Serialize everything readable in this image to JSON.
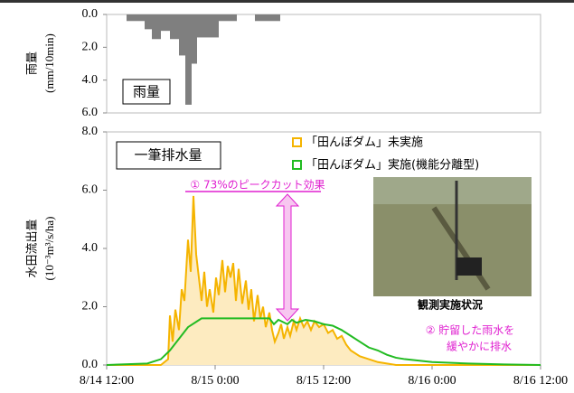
{
  "rain_chart": {
    "type": "histogram",
    "y_label_1": "雨量",
    "y_label_2": "(mm/10min)",
    "box_label": "雨量",
    "color": "#7f7f7f",
    "bins": [
      2.2,
      4.2,
      5.0,
      6.0,
      7.0,
      8.0,
      8.7,
      9.4,
      10.0,
      10.7,
      12.4,
      14.4,
      16.4,
      19.2
    ],
    "values": [
      0.4,
      0.9,
      1.5,
      1.0,
      1.5,
      2.5,
      5.5,
      3.0,
      1.4,
      1.4,
      0.4,
      0,
      0.4
    ],
    "ylim": [
      0,
      6
    ],
    "yticks": [
      {
        "value": 0,
        "label": "0.0"
      },
      {
        "value": 2,
        "label": "2.0"
      },
      {
        "value": 4,
        "label": "4.0"
      },
      {
        "value": 6,
        "label": "6.0"
      }
    ],
    "xlim": [
      0,
      48
    ]
  },
  "chart_data": {
    "type": "line",
    "y_label_1": "水田流出量",
    "y_label_2": "(10⁻³m³/s/ha)",
    "box_label": "一筆排水量",
    "xlim": [
      0,
      48
    ],
    "xticks": [
      {
        "value": 0,
        "label": "8/14 12:00"
      },
      {
        "value": 12,
        "label": "8/15 0:00"
      },
      {
        "value": 24,
        "label": "8/15 12:00"
      },
      {
        "value": 36,
        "label": "8/16 0:00"
      },
      {
        "value": 48,
        "label": "8/16 12:00"
      }
    ],
    "ylim": [
      0,
      8
    ],
    "yticks": [
      {
        "value": 0,
        "label": "0.0"
      },
      {
        "value": 2,
        "label": "2.0"
      },
      {
        "value": 4,
        "label": "4.0"
      },
      {
        "value": 6,
        "label": "6.0"
      },
      {
        "value": 8,
        "label": "8.0"
      }
    ],
    "series": [
      {
        "name": "「田んぼダム」未実施",
        "color": "#f5b400",
        "fill": "#fdebc0",
        "x": [
          0,
          6,
          6.8,
          7.0,
          7.3,
          7.6,
          8.0,
          8.3,
          8.6,
          9.0,
          9.3,
          9.6,
          9.9,
          10.2,
          10.5,
          10.8,
          11.1,
          11.4,
          11.8,
          12.1,
          12.4,
          12.8,
          13.1,
          13.4,
          13.7,
          14.0,
          14.3,
          14.6,
          15.0,
          15.4,
          15.7,
          16.0,
          16.3,
          16.7,
          17.0,
          17.3,
          17.6,
          18.0,
          18.3,
          18.6,
          19.0,
          19.3,
          19.6,
          20.0,
          20.3,
          20.7,
          21.0,
          21.4,
          21.8,
          22.2,
          22.6,
          23.0,
          23.5,
          24.0,
          24.5,
          25.0,
          25.5,
          26.0,
          26.5,
          27.0,
          28.0,
          29.0,
          30.0,
          31.0,
          32,
          48
        ],
        "values": [
          0,
          0,
          0.2,
          1.7,
          0.8,
          1.9,
          1.2,
          2.6,
          2.2,
          4.3,
          3.2,
          5.8,
          3.8,
          3.0,
          2.2,
          3.2,
          2.0,
          2.6,
          1.8,
          3.0,
          2.4,
          3.6,
          2.5,
          3.4,
          3.0,
          3.5,
          2.2,
          3.3,
          2.1,
          2.9,
          1.9,
          2.6,
          1.5,
          2.4,
          1.6,
          2.0,
          1.3,
          1.8,
          1.2,
          0.8,
          1.1,
          1.4,
          0.9,
          1.3,
          1.0,
          1.5,
          1.2,
          1.6,
          1.3,
          1.5,
          1.2,
          1.5,
          1.3,
          1.4,
          1.1,
          1.2,
          0.9,
          1.0,
          0.7,
          0.5,
          0.3,
          0.2,
          0.1,
          0.05,
          0,
          0
        ]
      },
      {
        "name": "「田んぼダム」実施(機能分離型)",
        "color": "#22bb22",
        "x": [
          0,
          4.5,
          6,
          7,
          8,
          9,
          10,
          10.5,
          18,
          18.5,
          19,
          20,
          20.5,
          21,
          22,
          23,
          24,
          25,
          26,
          27,
          28,
          29,
          30,
          31,
          32,
          33,
          36,
          40,
          44,
          48
        ],
        "values": [
          0,
          0.05,
          0.2,
          0.5,
          0.9,
          1.3,
          1.5,
          1.6,
          1.6,
          1.4,
          1.55,
          1.4,
          1.55,
          1.45,
          1.55,
          1.5,
          1.4,
          1.35,
          1.2,
          1.0,
          0.8,
          0.6,
          0.5,
          0.35,
          0.25,
          0.2,
          0.1,
          0.05,
          0.02,
          0
        ]
      }
    ],
    "annotations": [
      "① 73%のピークカット効果",
      "② 貯留した雨水を",
      "緩やかに排水"
    ],
    "photo_caption": "観測実施状況"
  }
}
